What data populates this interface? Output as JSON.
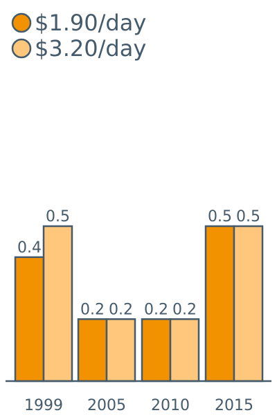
{
  "chart_data": {
    "type": "bar",
    "categories": [
      "1999",
      "2005",
      "2010",
      "2015"
    ],
    "series": [
      {
        "name": "$1.90/day",
        "color": "#f39200",
        "values": [
          0.4,
          0.2,
          0.2,
          0.5
        ]
      },
      {
        "name": "$3.20/day",
        "color": "#fec77c",
        "values": [
          0.5,
          0.2,
          0.2,
          0.5
        ]
      }
    ],
    "value_labels": [
      [
        "0.4",
        "0.2",
        "0.2",
        "0.5"
      ],
      [
        "0.5",
        "0.2",
        "0.2",
        "0.5"
      ]
    ],
    "legend_position": "top-left",
    "grid": false,
    "ylim": [
      0,
      0.5
    ]
  }
}
